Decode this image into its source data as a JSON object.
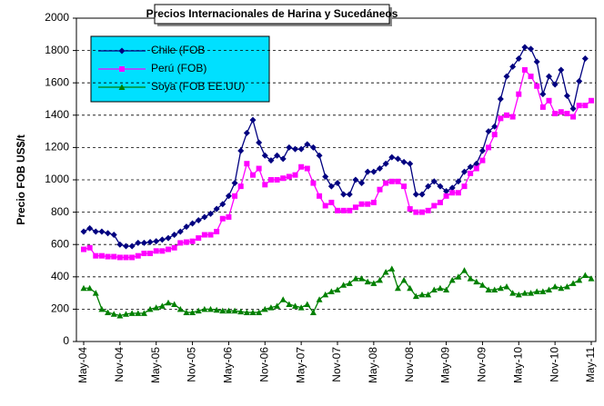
{
  "chart_data": {
    "type": "line",
    "title": "Precios Internacionales de Harina y Sucedáneos",
    "y_label": "Precio FOB US$/t",
    "categories": [
      "May-04",
      null,
      null,
      null,
      null,
      null,
      "Nov-04",
      null,
      null,
      null,
      null,
      null,
      "May-05",
      null,
      null,
      null,
      null,
      null,
      "Nov-05",
      null,
      null,
      null,
      null,
      null,
      "May-06",
      null,
      null,
      null,
      null,
      null,
      "Nov-06",
      null,
      null,
      null,
      null,
      null,
      "May-07",
      null,
      null,
      null,
      null,
      null,
      "Nov-07",
      null,
      null,
      null,
      null,
      null,
      "May-08",
      null,
      null,
      null,
      null,
      null,
      "Nov-08",
      null,
      null,
      null,
      null,
      null,
      "May-09",
      null,
      null,
      null,
      null,
      null,
      "Nov-09",
      null,
      null,
      null,
      null,
      null,
      "May-10",
      null,
      null,
      null,
      null,
      null,
      "Nov-10",
      null,
      null,
      null,
      null,
      null,
      "May-11"
    ],
    "series": [
      {
        "name": "Chile (FOB",
        "color": "#000080",
        "marker": "diamond",
        "values": [
          680,
          700,
          680,
          680,
          670,
          660,
          600,
          590,
          590,
          610,
          610,
          615,
          620,
          630,
          640,
          660,
          680,
          710,
          730,
          750,
          770,
          790,
          820,
          850,
          900,
          980,
          1180,
          1290,
          1370,
          1230,
          1150,
          1120,
          1150,
          1130,
          1200,
          1190,
          1190,
          1220,
          1200,
          1150,
          1020,
          960,
          980,
          910,
          910,
          1000,
          980,
          1050,
          1050,
          1070,
          1100,
          1140,
          1130,
          1110,
          1100,
          910,
          910,
          960,
          990,
          960,
          930,
          950,
          990,
          1050,
          1080,
          1100,
          1180,
          1300,
          1330,
          1500,
          1640,
          1700,
          1750,
          1820,
          1810,
          1730,
          1530,
          1640,
          1590,
          1680,
          1520,
          1440,
          1610,
          1750,
          null
        ]
      },
      {
        "name": "Perú (FOB)",
        "color": "#ff00ff",
        "marker": "square",
        "values": [
          570,
          580,
          530,
          530,
          525,
          525,
          520,
          520,
          520,
          530,
          545,
          545,
          560,
          560,
          570,
          580,
          610,
          615,
          620,
          640,
          660,
          660,
          680,
          760,
          770,
          900,
          960,
          1100,
          1030,
          1070,
          970,
          1000,
          1000,
          1010,
          1020,
          1030,
          1080,
          1070,
          980,
          900,
          840,
          860,
          810,
          810,
          810,
          830,
          850,
          850,
          860,
          940,
          980,
          990,
          990,
          960,
          820,
          800,
          800,
          810,
          840,
          860,
          900,
          920,
          920,
          960,
          1040,
          1070,
          1120,
          1200,
          1280,
          1380,
          1400,
          1390,
          1530,
          1680,
          1640,
          1580,
          1450,
          1490,
          1410,
          1420,
          1410,
          1390,
          1460,
          1460,
          1490
        ]
      },
      {
        "name": "Soya (FOB EE.UU)",
        "color": "#008000",
        "marker": "triangle",
        "values": [
          330,
          330,
          300,
          200,
          180,
          170,
          160,
          170,
          175,
          175,
          175,
          200,
          210,
          220,
          240,
          230,
          200,
          180,
          180,
          190,
          200,
          200,
          195,
          190,
          190,
          190,
          185,
          180,
          180,
          180,
          200,
          210,
          220,
          260,
          230,
          220,
          210,
          230,
          180,
          260,
          290,
          310,
          320,
          350,
          360,
          390,
          390,
          370,
          360,
          380,
          430,
          450,
          330,
          380,
          330,
          280,
          290,
          290,
          320,
          330,
          320,
          380,
          400,
          440,
          390,
          370,
          350,
          320,
          320,
          330,
          340,
          300,
          290,
          300,
          300,
          310,
          310,
          320,
          340,
          330,
          340,
          360,
          380,
          410,
          390
        ]
      }
    ],
    "ylim": [
      0,
      2000
    ],
    "yticks": [
      0,
      200,
      400,
      600,
      800,
      1000,
      1200,
      1400,
      1600,
      1800,
      2000
    ],
    "grid": true
  }
}
